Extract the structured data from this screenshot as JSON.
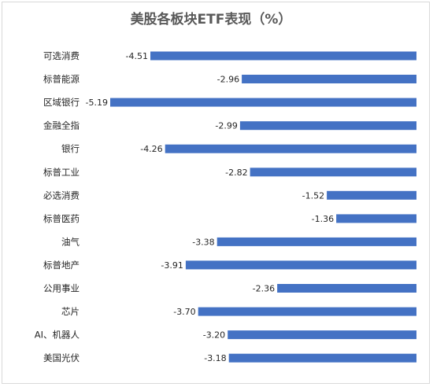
{
  "chart_data": {
    "type": "bar",
    "orientation": "horizontal",
    "title": "美股各板块ETF表现（%）",
    "xlabel": "",
    "ylabel": "",
    "xlim": [
      -5.19,
      0
    ],
    "grid": false,
    "legend": "none",
    "bar_color": "#4472c4",
    "categories": [
      "可选消费",
      "标普能源",
      "区域银行",
      "金融全指",
      "银行",
      "标普工业",
      "必选消费",
      "标普医药",
      "油气",
      "标普地产",
      "公用事业",
      "芯片",
      "AI、机器人",
      "美国光伏"
    ],
    "values": [
      -4.51,
      -2.96,
      -5.19,
      -2.99,
      -4.26,
      -2.82,
      -1.52,
      -1.36,
      -3.38,
      -3.91,
      -2.36,
      -3.7,
      -3.2,
      -3.18
    ],
    "value_labels": [
      "-4.51",
      "-2.96",
      "-5.19",
      "-2.99",
      "-4.26",
      "-2.82",
      "-1.52",
      "-1.36",
      "-3.38",
      "-3.91",
      "-2.36",
      "-3.70",
      "-3.20",
      "-3.18"
    ]
  }
}
